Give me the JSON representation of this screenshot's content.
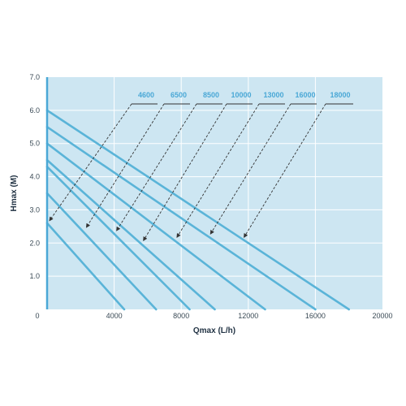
{
  "chart_data": {
    "type": "line",
    "xlabel": "Qmax (L/h)",
    "ylabel": "Hmax (M)",
    "xlim": [
      0,
      20000
    ],
    "ylim": [
      0,
      7.0
    ],
    "x_ticks": [
      "0",
      "4000",
      "8000",
      "12000",
      "16000",
      "20000"
    ],
    "y_ticks": [
      "1.0",
      "2.0",
      "3.0",
      "4.0",
      "5.0",
      "6.0",
      "7.0"
    ],
    "grid": true,
    "colors": {
      "plot_bg": "#cde6f2",
      "line": "#5ab4d8",
      "grid": "#ffffff",
      "axis": "#4aa8d6",
      "label_text": "#4aa8d6",
      "arrow": "#333333"
    },
    "series": [
      {
        "name": "4600",
        "points": [
          [
            0,
            2.6
          ],
          [
            4600,
            0
          ]
        ],
        "label_target": [
          0,
          2.6
        ]
      },
      {
        "name": "6500",
        "points": [
          [
            0,
            3.5
          ],
          [
            6500,
            0
          ]
        ],
        "label_target": [
          2200,
          2.4
        ]
      },
      {
        "name": "8500",
        "points": [
          [
            0,
            4.3
          ],
          [
            8500,
            0
          ]
        ],
        "label_target": [
          4000,
          2.3
        ]
      },
      {
        "name": "10000",
        "points": [
          [
            0,
            4.5
          ],
          [
            10000,
            0
          ]
        ],
        "label_target": [
          5600,
          2.0
        ]
      },
      {
        "name": "13000",
        "points": [
          [
            0,
            5.0
          ],
          [
            13000,
            0
          ]
        ],
        "label_target": [
          7600,
          2.1
        ]
      },
      {
        "name": "16000",
        "points": [
          [
            0,
            5.5
          ],
          [
            16000,
            0
          ]
        ],
        "label_target": [
          9600,
          2.2
        ]
      },
      {
        "name": "18000",
        "points": [
          [
            0,
            6.0
          ],
          [
            18000,
            0
          ]
        ],
        "label_target": [
          11600,
          2.1
        ]
      }
    ]
  }
}
